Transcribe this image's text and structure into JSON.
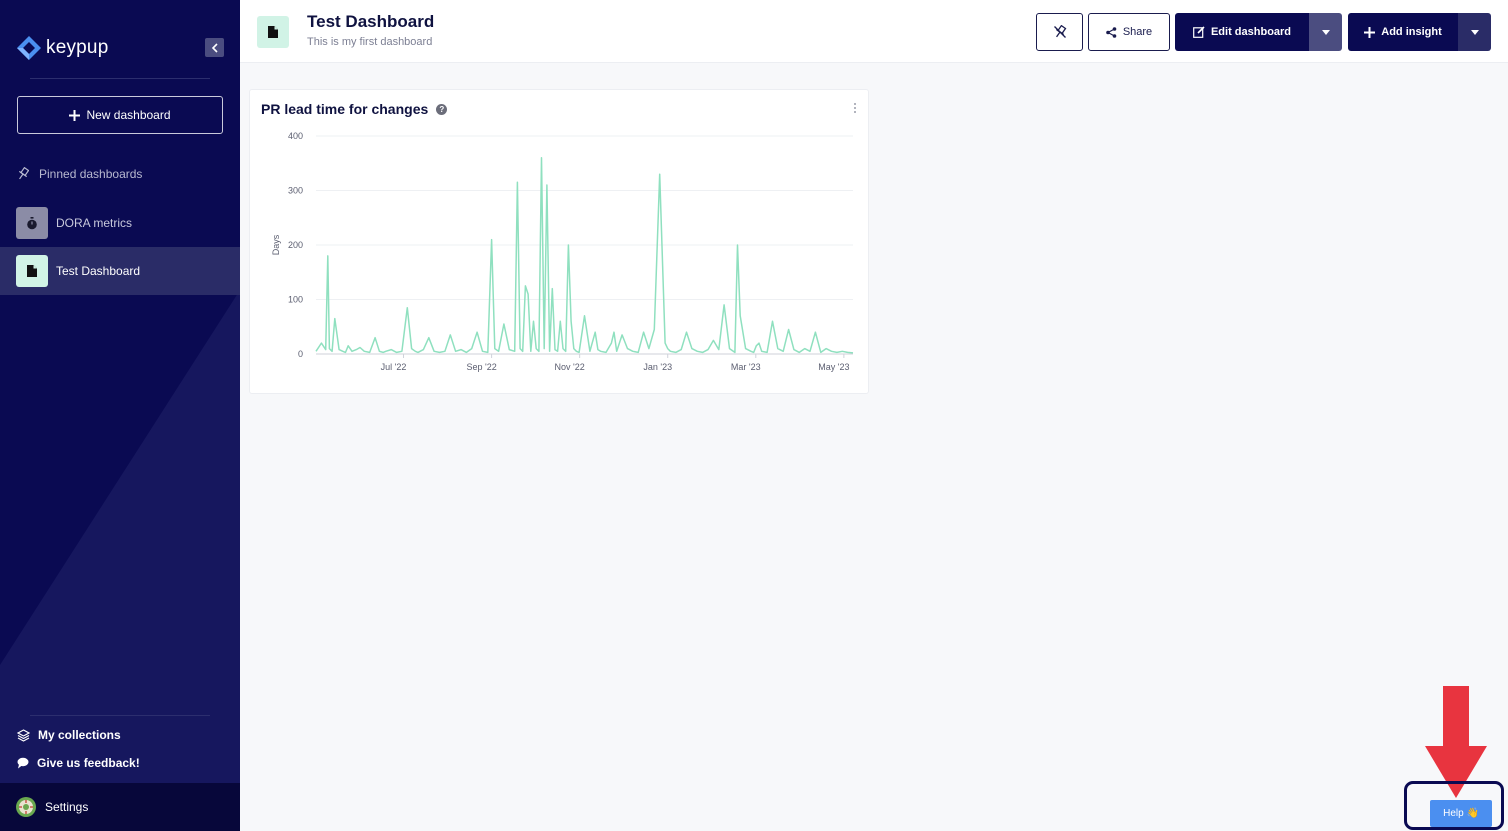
{
  "sidebar": {
    "logo_text": "keypup",
    "new_dashboard_label": "New dashboard",
    "pinned_label": "Pinned dashboards",
    "dashboards": [
      {
        "label": "DORA metrics",
        "icon": "stopwatch-icon",
        "thumb_color": "#8b8ca6"
      },
      {
        "label": "Test Dashboard",
        "icon": "document-icon",
        "thumb_color": "#d1f3e6",
        "active": true
      }
    ],
    "my_collections_label": "My collections",
    "feedback_label": "Give us feedback!",
    "settings_label": "Settings"
  },
  "header": {
    "title": "Test Dashboard",
    "subtitle": "This is my first dashboard",
    "share_label": "Share",
    "edit_dashboard_label": "Edit dashboard",
    "add_insight_label": "Add insight"
  },
  "card": {
    "title": "PR lead time for changes"
  },
  "help": {
    "label": "Help 👋"
  },
  "colors": {
    "sidebar_bg": "#0a0a52",
    "accent_dark": "#0a0a52",
    "line_color": "#8fe0bf",
    "help_blue": "#4b8ff0",
    "arrow_red": "#e8343f"
  },
  "chart_data": {
    "type": "line",
    "title": "PR lead time for changes",
    "xlabel": "",
    "ylabel": "Days",
    "ylim": [
      0,
      400
    ],
    "yticks": [
      0,
      100,
      200,
      300,
      400
    ],
    "xtick_labels": [
      "Jul '22",
      "Sep '22",
      "Nov '22",
      "Jan '23",
      "Mar '23",
      "May '23"
    ],
    "xtick_positions": [
      0.163,
      0.327,
      0.491,
      0.655,
      0.819,
      0.983
    ],
    "grid": true,
    "series": [
      {
        "x": [
          0.0,
          0.01,
          0.018,
          0.022,
          0.025,
          0.03,
          0.035,
          0.043,
          0.05,
          0.055,
          0.06,
          0.067,
          0.075,
          0.082,
          0.09,
          0.1,
          0.11,
          0.118,
          0.125,
          0.13,
          0.14,
          0.15,
          0.16,
          0.17,
          0.178,
          0.185,
          0.19,
          0.2,
          0.21,
          0.22,
          0.23,
          0.24,
          0.25,
          0.26,
          0.27,
          0.28,
          0.29,
          0.3,
          0.31,
          0.32,
          0.327,
          0.333,
          0.34,
          0.35,
          0.36,
          0.37,
          0.375,
          0.38,
          0.385,
          0.39,
          0.395,
          0.4,
          0.405,
          0.41,
          0.415,
          0.42,
          0.425,
          0.43,
          0.435,
          0.44,
          0.445,
          0.45,
          0.455,
          0.46,
          0.465,
          0.47,
          0.475,
          0.48,
          0.485,
          0.49,
          0.5,
          0.51,
          0.52,
          0.525,
          0.53,
          0.54,
          0.55,
          0.555,
          0.56,
          0.57,
          0.58,
          0.59,
          0.6,
          0.61,
          0.62,
          0.63,
          0.64,
          0.65,
          0.655,
          0.66,
          0.67,
          0.68,
          0.69,
          0.7,
          0.71,
          0.72,
          0.73,
          0.74,
          0.75,
          0.76,
          0.77,
          0.78,
          0.785,
          0.79,
          0.8,
          0.81,
          0.815,
          0.82,
          0.825,
          0.83,
          0.84,
          0.85,
          0.86,
          0.87,
          0.88,
          0.89,
          0.9,
          0.91,
          0.92,
          0.93,
          0.94,
          0.95,
          0.96,
          0.97,
          0.98,
          0.99,
          1.0
        ],
        "values": [
          5,
          20,
          8,
          180,
          10,
          5,
          65,
          8,
          5,
          3,
          15,
          5,
          8,
          12,
          5,
          3,
          30,
          5,
          3,
          5,
          8,
          3,
          5,
          85,
          10,
          5,
          3,
          8,
          30,
          5,
          3,
          5,
          35,
          5,
          8,
          3,
          10,
          40,
          5,
          3,
          210,
          10,
          5,
          55,
          8,
          5,
          315,
          10,
          5,
          125,
          110,
          5,
          60,
          10,
          5,
          360,
          10,
          310,
          5,
          120,
          8,
          5,
          60,
          10,
          5,
          200,
          60,
          10,
          5,
          3,
          70,
          5,
          40,
          8,
          5,
          3,
          20,
          40,
          5,
          35,
          10,
          5,
          3,
          40,
          10,
          45,
          330,
          20,
          10,
          5,
          3,
          8,
          40,
          10,
          5,
          3,
          8,
          25,
          8,
          90,
          10,
          3,
          200,
          70,
          10,
          5,
          3,
          15,
          20,
          5,
          3,
          60,
          10,
          5,
          45,
          8,
          3,
          10,
          5,
          40,
          3,
          10,
          5,
          3,
          5,
          3,
          2
        ]
      }
    ]
  }
}
